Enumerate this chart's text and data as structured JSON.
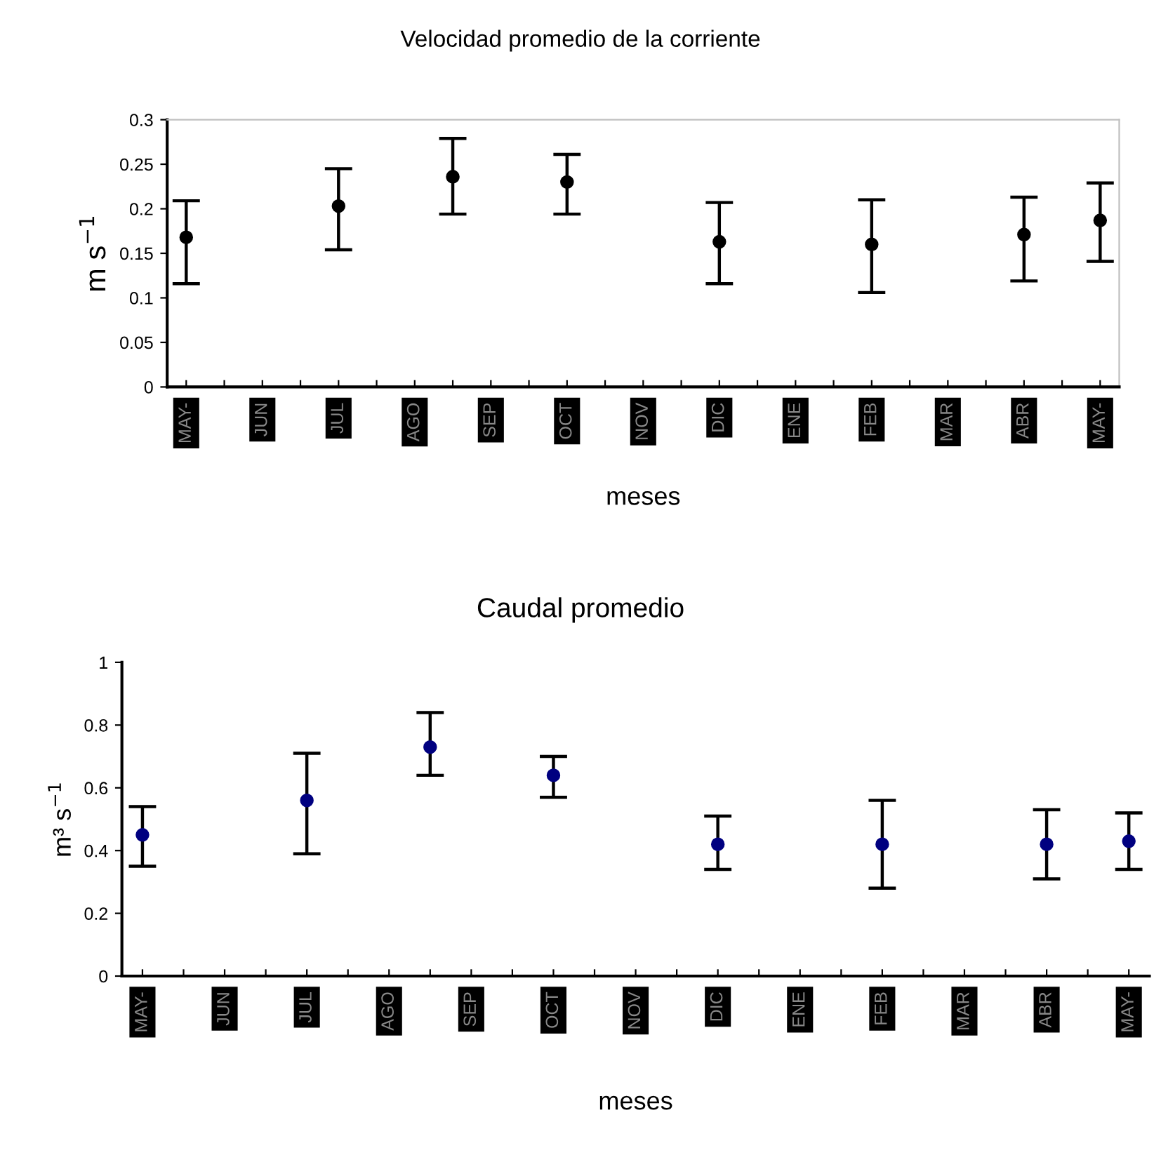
{
  "chart_data": [
    {
      "type": "scatter",
      "title": "Velocidad promedio de la corriente",
      "xlabel": "meses",
      "ylabel": "m s$^{−1}$",
      "marker": "circle",
      "grid": false,
      "categories": [
        "MAY-",
        null,
        "JUN",
        null,
        "JUL",
        null,
        "AGO",
        null,
        "SEP",
        null,
        "OCT",
        null,
        "NOV",
        null,
        "DIC",
        null,
        "ENE",
        null,
        "FEB",
        null,
        "MAR",
        null,
        "ABR",
        null,
        "MAY-"
      ],
      "ylim": [
        0,
        0.3
      ],
      "yticks": [
        0,
        0.05,
        0.1,
        0.15,
        0.2,
        0.25,
        0.3
      ],
      "series": [
        {
          "color": "#000000",
          "values": [
            0.168,
            null,
            null,
            null,
            0.203,
            null,
            null,
            0.236,
            null,
            null,
            0.23,
            null,
            null,
            null,
            0.163,
            null,
            null,
            null,
            0.16,
            null,
            null,
            null,
            0.171,
            null,
            0.187
          ],
          "errors": [
            [
              0.116,
              0.209
            ],
            null,
            null,
            null,
            [
              0.154,
              0.245
            ],
            null,
            null,
            [
              0.194,
              0.279
            ],
            null,
            null,
            [
              0.194,
              0.261
            ],
            null,
            null,
            null,
            [
              0.116,
              0.207
            ],
            null,
            null,
            null,
            [
              0.106,
              0.21
            ],
            null,
            null,
            null,
            [
              0.119,
              0.213
            ],
            null,
            [
              0.141,
              0.229
            ]
          ]
        }
      ]
    },
    {
      "type": "scatter",
      "title": "Caudal promedio",
      "xlabel": "meses",
      "ylabel": "m³ s$^{−1}$",
      "marker": "circle",
      "grid": false,
      "categories": [
        "MAY-",
        null,
        "JUN",
        null,
        "JUL",
        null,
        "AGO",
        null,
        "SEP",
        null,
        "OCT",
        null,
        "NOV",
        null,
        "DIC",
        null,
        "ENE",
        null,
        "FEB",
        null,
        "MAR",
        null,
        "ABR",
        null,
        "MAY-"
      ],
      "ylim": [
        0,
        1
      ],
      "yticks": [
        0,
        0.2,
        0.4,
        0.6,
        0.8,
        1
      ],
      "series": [
        {
          "color": "#000080",
          "values": [
            0.45,
            null,
            null,
            null,
            0.56,
            null,
            null,
            0.73,
            null,
            null,
            0.64,
            null,
            null,
            null,
            0.42,
            null,
            null,
            null,
            0.42,
            null,
            null,
            null,
            0.42,
            null,
            0.43
          ],
          "errors": [
            [
              0.35,
              0.54
            ],
            null,
            null,
            null,
            [
              0.39,
              0.71
            ],
            null,
            null,
            [
              0.64,
              0.84
            ],
            null,
            null,
            [
              0.57,
              0.7
            ],
            null,
            null,
            null,
            [
              0.34,
              0.51
            ],
            null,
            null,
            null,
            [
              0.28,
              0.56
            ],
            null,
            null,
            null,
            [
              0.31,
              0.53
            ],
            null,
            [
              0.34,
              0.52
            ]
          ]
        }
      ]
    }
  ]
}
